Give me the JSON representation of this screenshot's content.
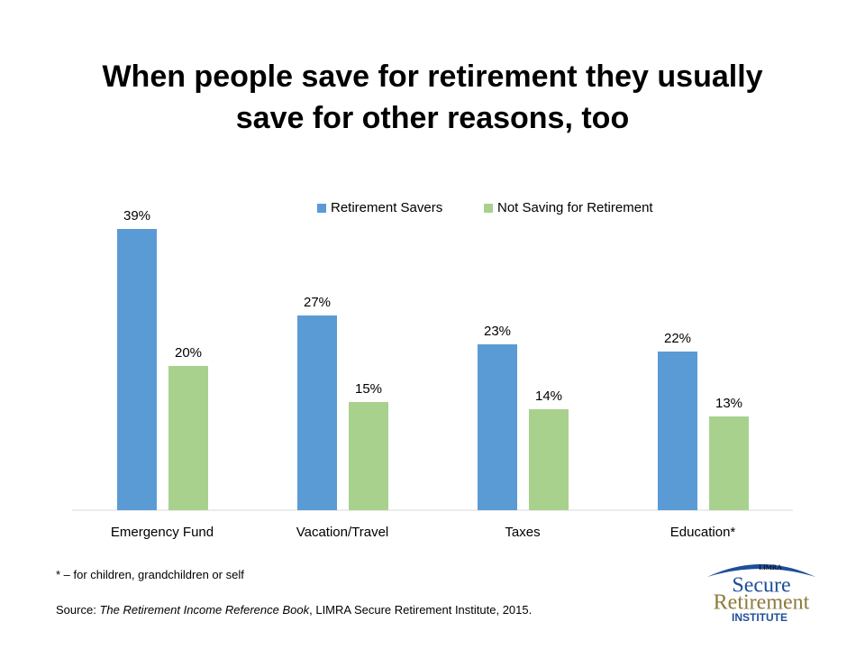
{
  "chart_data": {
    "type": "bar",
    "title": "When people save for retirement they usually save for other reasons, too",
    "categories": [
      "Emergency Fund",
      "Vacation/Travel",
      "Taxes",
      "Education*"
    ],
    "series": [
      {
        "name": "Retirement Savers",
        "color": "#5b9bd5",
        "values": [
          39,
          27,
          23,
          22
        ],
        "value_labels": [
          "39%",
          "27%",
          "23%",
          "22%"
        ]
      },
      {
        "name": "Not Saving for Retirement",
        "color": "#a9d18e",
        "values": [
          20,
          15,
          14,
          13
        ],
        "value_labels": [
          "20%",
          "15%",
          "14%",
          "13%"
        ]
      }
    ],
    "ylim": [
      0,
      40
    ],
    "legend": "top"
  },
  "footnote": "* – for children, grandchildren or self",
  "source": {
    "label": "Source:",
    "book": "The Retirement Income Reference Book",
    "rest": ", LIMRA Secure Retirement Institute,  2015."
  },
  "logo": {
    "top": "LIMRA",
    "line1": "Secure",
    "line2": "Retirement",
    "line3": "INSTITUTE"
  }
}
